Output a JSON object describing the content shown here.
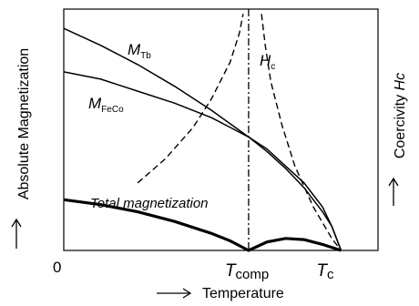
{
  "chart_data": {
    "type": "line",
    "ylabel": "Absolute Magnetization",
    "ylabel_right_prefix": "Coercivity",
    "ylabel_right_symbol": "Hc",
    "xlabel": "Temperature",
    "origin_label": "0",
    "x_ticks": [
      {
        "label_main": "T",
        "label_sub": "comp",
        "x": 1.0
      },
      {
        "label_main": "T",
        "label_sub": "c",
        "x": 1.5
      }
    ],
    "xlim": [
      0,
      1.7
    ],
    "ylim": [
      0,
      1.0
    ],
    "grid": false,
    "series": [
      {
        "name": "M_Tb",
        "label_main": "M",
        "label_sub": "Tb",
        "color": "#000000",
        "style": "solid",
        "points": [
          [
            0,
            0.92
          ],
          [
            0.2,
            0.85
          ],
          [
            0.4,
            0.77
          ],
          [
            0.6,
            0.68
          ],
          [
            0.8,
            0.58
          ],
          [
            1.0,
            0.47
          ],
          [
            1.1,
            0.41
          ],
          [
            1.2,
            0.34
          ],
          [
            1.3,
            0.26
          ],
          [
            1.4,
            0.16
          ],
          [
            1.45,
            0.1
          ],
          [
            1.5,
            0.0
          ]
        ]
      },
      {
        "name": "M_FeCo",
        "label_main": "M",
        "label_sub": "FeCo",
        "color": "#000000",
        "style": "solid",
        "points": [
          [
            0,
            0.74
          ],
          [
            0.2,
            0.71
          ],
          [
            0.4,
            0.66
          ],
          [
            0.6,
            0.61
          ],
          [
            0.8,
            0.55
          ],
          [
            1.0,
            0.47
          ],
          [
            1.1,
            0.42
          ],
          [
            1.2,
            0.35
          ],
          [
            1.3,
            0.28
          ],
          [
            1.4,
            0.18
          ],
          [
            1.45,
            0.1
          ],
          [
            1.5,
            0.0
          ]
        ]
      },
      {
        "name": "Total magnetization",
        "label_main": "Total magnetization",
        "label_sub": "",
        "color": "#000000",
        "style": "bold",
        "points": [
          [
            0,
            0.21
          ],
          [
            0.2,
            0.19
          ],
          [
            0.4,
            0.16
          ],
          [
            0.6,
            0.12
          ],
          [
            0.8,
            0.07
          ],
          [
            0.9,
            0.04
          ],
          [
            1.0,
            0.0
          ],
          [
            1.1,
            0.035
          ],
          [
            1.2,
            0.05
          ],
          [
            1.3,
            0.045
          ],
          [
            1.4,
            0.025
          ],
          [
            1.5,
            0.0
          ]
        ]
      },
      {
        "name": "H_c",
        "label_main": "H",
        "label_sub": "c",
        "color": "#000000",
        "style": "dashed",
        "segments": [
          [
            [
              0.4,
              0.28
            ],
            [
              0.55,
              0.38
            ],
            [
              0.7,
              0.51
            ],
            [
              0.8,
              0.63
            ],
            [
              0.9,
              0.78
            ],
            [
              0.95,
              0.9
            ],
            [
              0.97,
              0.98
            ]
          ],
          [
            [
              1.07,
              0.98
            ],
            [
              1.09,
              0.85
            ],
            [
              1.12,
              0.7
            ],
            [
              1.18,
              0.52
            ],
            [
              1.25,
              0.35
            ],
            [
              1.35,
              0.18
            ],
            [
              1.45,
              0.05
            ],
            [
              1.5,
              0.0
            ]
          ]
        ]
      }
    ],
    "compensation_line_style": "dash-dot"
  }
}
